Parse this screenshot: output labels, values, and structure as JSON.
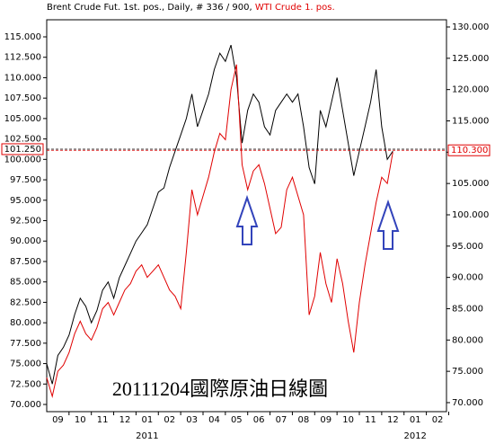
{
  "chart_data": {
    "type": "line",
    "subtitle": ", Daily, # 336 / 900, ",
    "annotation": "20111204國際原油日線圖",
    "x": [
      -0.5,
      -0.25,
      0,
      0.25,
      0.5,
      0.75,
      1,
      1.25,
      1.5,
      1.75,
      2,
      2.25,
      2.5,
      2.75,
      3,
      3.25,
      3.5,
      3.75,
      4,
      4.25,
      4.5,
      4.75,
      5,
      5.25,
      5.5,
      5.75,
      6,
      6.25,
      6.5,
      6.75,
      7,
      7.25,
      7.5,
      7.75,
      8,
      8.25,
      8.5,
      8.75,
      9,
      9.25,
      9.5,
      9.75,
      10,
      10.25,
      10.5,
      10.75,
      11,
      11.25,
      11.5,
      11.75,
      12,
      12.25,
      12.5,
      12.75,
      13,
      13.25,
      13.5,
      13.75,
      14,
      14.25,
      14.5,
      14.75,
      15
    ],
    "series": [
      {
        "name": "Brent Crude Fut. 1st. pos.",
        "color": "#000000",
        "axis": "y",
        "values": [
          75,
          72.5,
          76,
          77,
          78.5,
          81,
          83,
          82,
          80,
          81.5,
          84,
          85,
          83,
          85.5,
          87,
          88.5,
          90,
          91,
          92,
          94,
          96,
          96.5,
          99,
          101,
          103,
          105,
          108,
          104,
          106,
          108,
          111,
          113,
          112,
          114,
          110,
          102,
          106,
          108,
          107,
          104,
          103,
          106,
          107,
          108,
          107,
          108,
          104,
          99,
          97,
          106,
          104,
          107,
          110,
          106,
          102,
          98,
          101,
          104,
          107,
          111,
          104,
          100,
          101
        ],
        "last": {
          "value": 101.25,
          "label": "101.250"
        }
      },
      {
        "name": "WTI Crude 1. pos.",
        "color": "#e00000",
        "axis": "y2",
        "values": [
          74,
          71,
          75,
          76,
          78,
          81,
          83,
          81,
          80,
          82,
          85,
          86,
          84,
          86,
          88,
          89,
          91,
          92,
          90,
          91,
          92,
          90,
          88,
          87,
          85,
          94,
          104,
          100,
          103,
          106,
          110,
          113,
          112,
          120,
          124,
          108,
          104,
          107,
          108,
          105,
          101,
          97,
          98,
          104,
          106,
          103,
          100,
          84,
          87,
          94,
          89,
          86,
          93,
          89,
          83,
          78,
          86,
          92,
          97,
          102,
          106,
          105,
          110
        ],
        "last": {
          "value": 110.3,
          "label": "110.300"
        }
      }
    ],
    "xlim": [
      -0.5,
      17.4
    ],
    "xticks": [
      {
        "value": 0,
        "label": "09"
      },
      {
        "value": 1,
        "label": "10"
      },
      {
        "value": 2,
        "label": "11"
      },
      {
        "value": 3,
        "label": "12"
      },
      {
        "value": 4,
        "label": "01"
      },
      {
        "value": 5,
        "label": "02"
      },
      {
        "value": 6,
        "label": "03"
      },
      {
        "value": 7,
        "label": "04"
      },
      {
        "value": 8,
        "label": "05"
      },
      {
        "value": 9,
        "label": "06"
      },
      {
        "value": 10,
        "label": "07"
      },
      {
        "value": 11,
        "label": "08"
      },
      {
        "value": 12,
        "label": "09"
      },
      {
        "value": 13,
        "label": "10"
      },
      {
        "value": 14,
        "label": "11"
      },
      {
        "value": 15,
        "label": "12"
      },
      {
        "value": 16,
        "label": "01"
      },
      {
        "value": 17,
        "label": "02"
      }
    ],
    "year_labels": [
      {
        "value": 4,
        "label": "2011"
      },
      {
        "value": 16,
        "label": "2012"
      }
    ],
    "ylim": [
      69.12,
      117.09
    ],
    "yticks": [
      {
        "value": 70,
        "label": "70.000"
      },
      {
        "value": 72.5,
        "label": "72.500"
      },
      {
        "value": 75,
        "label": "75.000"
      },
      {
        "value": 77.5,
        "label": "77.500"
      },
      {
        "value": 80,
        "label": "80.000"
      },
      {
        "value": 82.5,
        "label": "82.500"
      },
      {
        "value": 85,
        "label": "85.000"
      },
      {
        "value": 87.5,
        "label": "87.500"
      },
      {
        "value": 90,
        "label": "90.000"
      },
      {
        "value": 92.5,
        "label": "92.500"
      },
      {
        "value": 95,
        "label": "95.000"
      },
      {
        "value": 97.5,
        "label": "97.500"
      },
      {
        "value": 100,
        "label": "100.000"
      },
      {
        "value": 102.5,
        "label": "102.500"
      },
      {
        "value": 105,
        "label": "105.000"
      },
      {
        "value": 107.5,
        "label": "107.500"
      },
      {
        "value": 110,
        "label": "110.000"
      },
      {
        "value": 112.5,
        "label": "112.500"
      },
      {
        "value": 115,
        "label": "115.000"
      }
    ],
    "y2lim": [
      68.56,
      131.15
    ],
    "y2ticks": [
      {
        "value": 70,
        "label": "70.000"
      },
      {
        "value": 75,
        "label": "75.000"
      },
      {
        "value": 80,
        "label": "80.000"
      },
      {
        "value": 85,
        "label": "85.000"
      },
      {
        "value": 90,
        "label": "90.000"
      },
      {
        "value": 95,
        "label": "95.000"
      },
      {
        "value": 100,
        "label": "100.000"
      },
      {
        "value": 105,
        "label": "105.000"
      },
      {
        "value": 110,
        "label": "110.000"
      },
      {
        "value": 115,
        "label": "115.000"
      },
      {
        "value": 120,
        "label": "120.000"
      },
      {
        "value": 125,
        "label": "125.000"
      },
      {
        "value": 130,
        "label": "130.000"
      }
    ]
  }
}
